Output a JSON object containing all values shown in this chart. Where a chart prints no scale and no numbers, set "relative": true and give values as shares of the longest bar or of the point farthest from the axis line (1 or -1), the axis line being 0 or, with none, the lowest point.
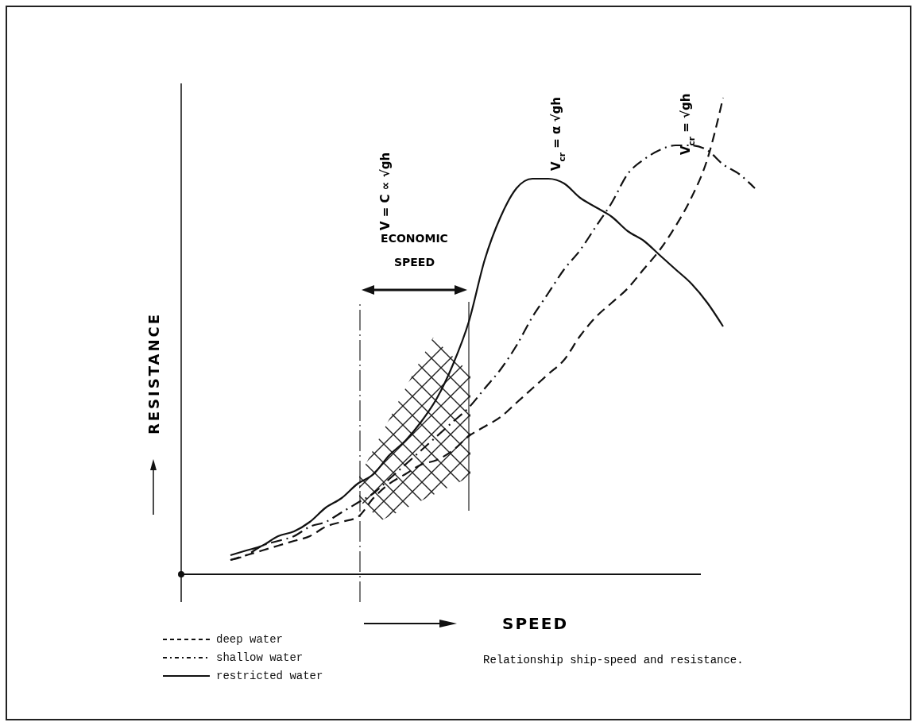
{
  "chart_data": {
    "type": "line",
    "relative": true,
    "xlabel": "SPEED",
    "ylabel": "RESISTANCE",
    "categories": [
      null,
      null,
      null,
      null,
      null,
      null,
      null,
      null,
      null,
      null,
      null,
      null,
      null,
      null,
      null,
      null,
      null,
      null,
      null,
      null,
      null,
      null,
      null,
      null,
      null,
      null,
      null,
      null,
      null,
      null,
      null,
      null,
      null,
      null,
      null
    ],
    "series": [
      {
        "name": "deep water",
        "color": "#111111",
        "line_style": "dashed",
        "values": [
          0.03,
          0.04,
          0.05,
          0.06,
          0.07,
          0.08,
          0.1,
          0.11,
          0.12,
          0.16,
          0.19,
          0.21,
          0.23,
          0.24,
          0.26,
          0.29,
          0.31,
          0.33,
          0.36,
          0.39,
          0.42,
          0.45,
          0.5,
          0.54,
          0.57,
          0.6,
          0.64,
          0.68,
          0.73,
          0.79,
          0.87,
          1.0,
          null,
          null,
          null
        ]
      },
      {
        "name": "shallow water",
        "color": "#111111",
        "line_style": "dashdot",
        "values": [
          0.03,
          0.04,
          0.06,
          0.07,
          0.08,
          0.1,
          0.11,
          0.13,
          0.15,
          0.17,
          0.2,
          0.23,
          0.26,
          0.29,
          0.32,
          0.35,
          0.39,
          0.43,
          0.48,
          0.54,
          0.59,
          0.64,
          0.68,
          0.73,
          0.78,
          0.84,
          0.87,
          0.89,
          0.9,
          0.9,
          0.89,
          0.86,
          0.84,
          0.81,
          null
        ]
      },
      {
        "name": "restricted water",
        "color": "#111111",
        "line_style": "solid",
        "values": [
          0.04,
          0.05,
          0.06,
          0.08,
          0.09,
          0.11,
          0.14,
          0.16,
          0.19,
          0.21,
          0.25,
          0.28,
          0.32,
          0.37,
          0.44,
          0.53,
          0.66,
          0.75,
          0.81,
          0.83,
          0.83,
          0.82,
          0.79,
          0.77,
          0.75,
          0.72,
          0.7,
          0.67,
          0.64,
          0.61,
          0.57,
          0.52,
          null,
          null,
          null
        ]
      }
    ],
    "annotations": [
      "V = C ∝ √gh",
      "V$_{cr}$ = α √gh",
      "V$_{cr}$ = √gh",
      "ECONOMIC SPEED",
      "Relationship ship-speed and resistance."
    ],
    "legend": "bottom left"
  }
}
